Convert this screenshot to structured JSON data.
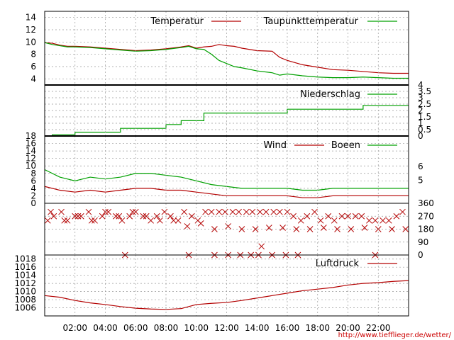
{
  "x_ticks": [
    "02:00",
    "04:00",
    "06:00",
    "08:00",
    "10:00",
    "12:00",
    "14:00",
    "16:00",
    "18:00",
    "20:00",
    "22:00"
  ],
  "credit": "http://www.tiefflieger.de/wetter/",
  "colors": {
    "red": "#b30000",
    "green": "#00a000",
    "grid": "#999999"
  },
  "chart_data": [
    {
      "type": "line",
      "x_unit": "hour of day",
      "x_range": [
        0,
        24
      ],
      "ylim": [
        3,
        15
      ],
      "y_ticks": [
        "4",
        "6",
        "8",
        "10",
        "12",
        "14"
      ],
      "y_tick_values": [
        4,
        6,
        8,
        10,
        12,
        14
      ],
      "series": [
        {
          "name": "Temperatur",
          "color": "#b30000",
          "x": [
            0,
            0.5,
            1,
            1.5,
            2,
            3,
            4,
            5,
            6,
            7,
            8,
            9,
            9.5,
            10,
            10.5,
            11,
            11.5,
            12,
            12.5,
            13,
            14,
            15,
            15.5,
            16,
            17,
            18,
            19,
            20,
            21,
            22,
            23,
            24
          ],
          "values": [
            9.9,
            9.8,
            9.5,
            9.3,
            9.3,
            9.2,
            9.0,
            8.8,
            8.6,
            8.7,
            8.9,
            9.2,
            9.4,
            9.0,
            9.2,
            9.3,
            9.6,
            9.4,
            9.3,
            9.0,
            8.6,
            8.5,
            7.5,
            7.0,
            6.3,
            5.9,
            5.5,
            5.4,
            5.2,
            5.0,
            4.9,
            4.9
          ]
        },
        {
          "name": "Taupunkttemperatur",
          "color": "#00a000",
          "x": [
            0,
            0.5,
            1,
            1.5,
            2,
            3,
            4,
            5,
            6,
            7,
            8,
            9,
            9.5,
            10,
            10.5,
            11,
            11.5,
            12,
            12.5,
            13,
            14,
            15,
            15.5,
            16,
            17,
            18,
            19,
            20,
            21,
            22,
            23,
            24
          ],
          "values": [
            9.9,
            9.6,
            9.4,
            9.2,
            9.2,
            9.1,
            8.9,
            8.7,
            8.5,
            8.6,
            8.8,
            9.1,
            9.3,
            8.9,
            8.8,
            8.0,
            7.0,
            6.5,
            6.0,
            5.8,
            5.3,
            5.0,
            4.6,
            4.8,
            4.5,
            4.3,
            4.2,
            4.2,
            4.3,
            4.2,
            4.1,
            4.1
          ]
        }
      ]
    },
    {
      "type": "line",
      "x_unit": "hour of day",
      "x_range": [
        0,
        24
      ],
      "ylim": [
        0,
        4
      ],
      "y_ticks": [
        "0",
        "0.5",
        "1",
        "1.5",
        "2",
        "2.5",
        "3",
        "3.5",
        "4"
      ],
      "y_tick_values": [
        0,
        0.5,
        1,
        1.5,
        2,
        2.5,
        3,
        3.5,
        4
      ],
      "y_axis_side": "right",
      "series": [
        {
          "name": "Niederschlag",
          "color": "#00a000",
          "step": true,
          "x": [
            0,
            0.5,
            1,
            2,
            3,
            4,
            5,
            6,
            7,
            8,
            9,
            10,
            10.5,
            12,
            13,
            14,
            15,
            16,
            17,
            18,
            19,
            20,
            21,
            22,
            23,
            24
          ],
          "values": [
            0,
            0.1,
            0.1,
            0.3,
            0.3,
            0.3,
            0.6,
            0.6,
            0.6,
            0.9,
            1.2,
            1.2,
            1.8,
            1.8,
            1.8,
            1.8,
            1.8,
            2.1,
            2.1,
            2.1,
            2.1,
            2.1,
            2.4,
            2.4,
            2.4,
            2.4
          ]
        }
      ]
    },
    {
      "type": "line",
      "x_unit": "hour of day",
      "x_range": [
        0,
        24
      ],
      "ylim": [
        0,
        18
      ],
      "y_ticks": [
        "0",
        "2",
        "4",
        "6",
        "8",
        "10",
        "12",
        "14",
        "16",
        "18"
      ],
      "y_tick_values": [
        0,
        2,
        4,
        6,
        8,
        10,
        12,
        14,
        16,
        18
      ],
      "right_ticks": [
        "5",
        "6"
      ],
      "right_tick_values": [
        6.2,
        9.9
      ],
      "series": [
        {
          "name": "Wind",
          "color": "#b30000",
          "x": [
            0,
            1,
            2,
            3,
            4,
            5,
            6,
            7,
            8,
            9,
            10,
            11,
            12,
            13,
            14,
            15,
            16,
            17,
            18,
            19,
            20,
            21,
            22,
            23,
            24
          ],
          "values": [
            4.5,
            3.5,
            3,
            3.5,
            3,
            3.5,
            4,
            4,
            3.5,
            3.5,
            3,
            2.5,
            2,
            2,
            2,
            2,
            2,
            1.5,
            1.5,
            2,
            2,
            2,
            2,
            2,
            2
          ]
        },
        {
          "name": "Boeen",
          "color": "#00a000",
          "x": [
            0,
            1,
            2,
            3,
            4,
            5,
            6,
            7,
            8,
            9,
            10,
            11,
            12,
            13,
            14,
            15,
            16,
            17,
            18,
            19,
            20,
            21,
            22,
            23,
            24
          ],
          "values": [
            9,
            7,
            6,
            7,
            6.5,
            7,
            8,
            8,
            7.5,
            7,
            6,
            5,
            4.5,
            4,
            4,
            4,
            4,
            3.5,
            3.5,
            4,
            4,
            4,
            4,
            4,
            4
          ]
        }
      ]
    },
    {
      "type": "scatter",
      "x_unit": "hour of day",
      "x_range": [
        0,
        24
      ],
      "ylim": [
        0,
        360
      ],
      "y_ticks": [
        "0",
        "90",
        "180",
        "270",
        "360"
      ],
      "y_tick_values": [
        0,
        90,
        180,
        270,
        360
      ],
      "y_axis_side": "right",
      "series": [
        {
          "name": "",
          "color": "#b30000",
          "marker": "x",
          "x": [
            0.2,
            0.6,
            1.1,
            1.5,
            2.0,
            2.4,
            2.9,
            3.3,
            3.8,
            4.2,
            4.7,
            5.1,
            5.6,
            6.0,
            6.5,
            7.0,
            7.4,
            7.9,
            8.3,
            8.8,
            9.2,
            9.7,
            10.1,
            10.6,
            11.0,
            11.5,
            11.9,
            12.4,
            12.8,
            13.3,
            13.7,
            14.2,
            14.6,
            15.1,
            15.5,
            16.0,
            16.4,
            16.9,
            17.3,
            17.8,
            18.2,
            18.7,
            19.1,
            19.6,
            20.0,
            20.5,
            20.9,
            21.4,
            21.8,
            22.3,
            22.7,
            23.2,
            23.6,
            0.4,
            1.3,
            2.2,
            3.1,
            4.0,
            4.9,
            5.8,
            6.7,
            7.6,
            8.5,
            9.4,
            10.3,
            11.2,
            12.1,
            13.0,
            13.9,
            14.8,
            15.7,
            16.6,
            17.5,
            18.4,
            19.3,
            20.2,
            21.1,
            22.0,
            22.9,
            23.8,
            5.3,
            9.5,
            11.2,
            12.1,
            12.9,
            13.6,
            14.1,
            15.0,
            15.9,
            16.7,
            21.8,
            14.3
          ],
          "values": [
            240,
            270,
            300,
            240,
            270,
            270,
            300,
            240,
            270,
            300,
            270,
            240,
            270,
            300,
            270,
            240,
            270,
            300,
            270,
            240,
            300,
            270,
            240,
            300,
            300,
            300,
            300,
            300,
            300,
            300,
            300,
            300,
            300,
            300,
            300,
            300,
            270,
            240,
            270,
            300,
            240,
            270,
            240,
            270,
            270,
            270,
            270,
            240,
            240,
            240,
            240,
            270,
            300,
            300,
            240,
            270,
            240,
            300,
            270,
            300,
            270,
            240,
            240,
            200,
            220,
            180,
            200,
            180,
            180,
            190,
            190,
            180,
            180,
            190,
            180,
            180,
            190,
            180,
            180,
            180,
            0,
            0,
            0,
            0,
            0,
            0,
            0,
            0,
            0,
            0,
            0,
            60
          ]
        }
      ]
    },
    {
      "type": "line",
      "x_unit": "hour of day",
      "x_range": [
        0,
        24
      ],
      "ylim": [
        1004,
        1019
      ],
      "y_ticks": [
        "1006",
        "1008",
        "1010",
        "1012",
        "1014",
        "1016",
        "1018"
      ],
      "y_tick_values": [
        1006,
        1008,
        1010,
        1012,
        1014,
        1016,
        1018
      ],
      "series": [
        {
          "name": "Luftdruck",
          "color": "#b30000",
          "x": [
            0,
            1,
            2,
            3,
            4,
            5,
            6,
            7,
            8,
            9,
            10,
            11,
            12,
            13,
            14,
            15,
            16,
            17,
            18,
            19,
            20,
            21,
            22,
            23,
            24
          ],
          "values": [
            1009.0,
            1008.6,
            1007.8,
            1007.2,
            1006.8,
            1006.3,
            1005.9,
            1005.7,
            1005.6,
            1005.8,
            1006.8,
            1007.1,
            1007.3,
            1007.8,
            1008.4,
            1009.0,
            1009.6,
            1010.2,
            1010.6,
            1011.0,
            1011.6,
            1012.0,
            1012.2,
            1012.5,
            1012.7
          ]
        }
      ]
    }
  ]
}
